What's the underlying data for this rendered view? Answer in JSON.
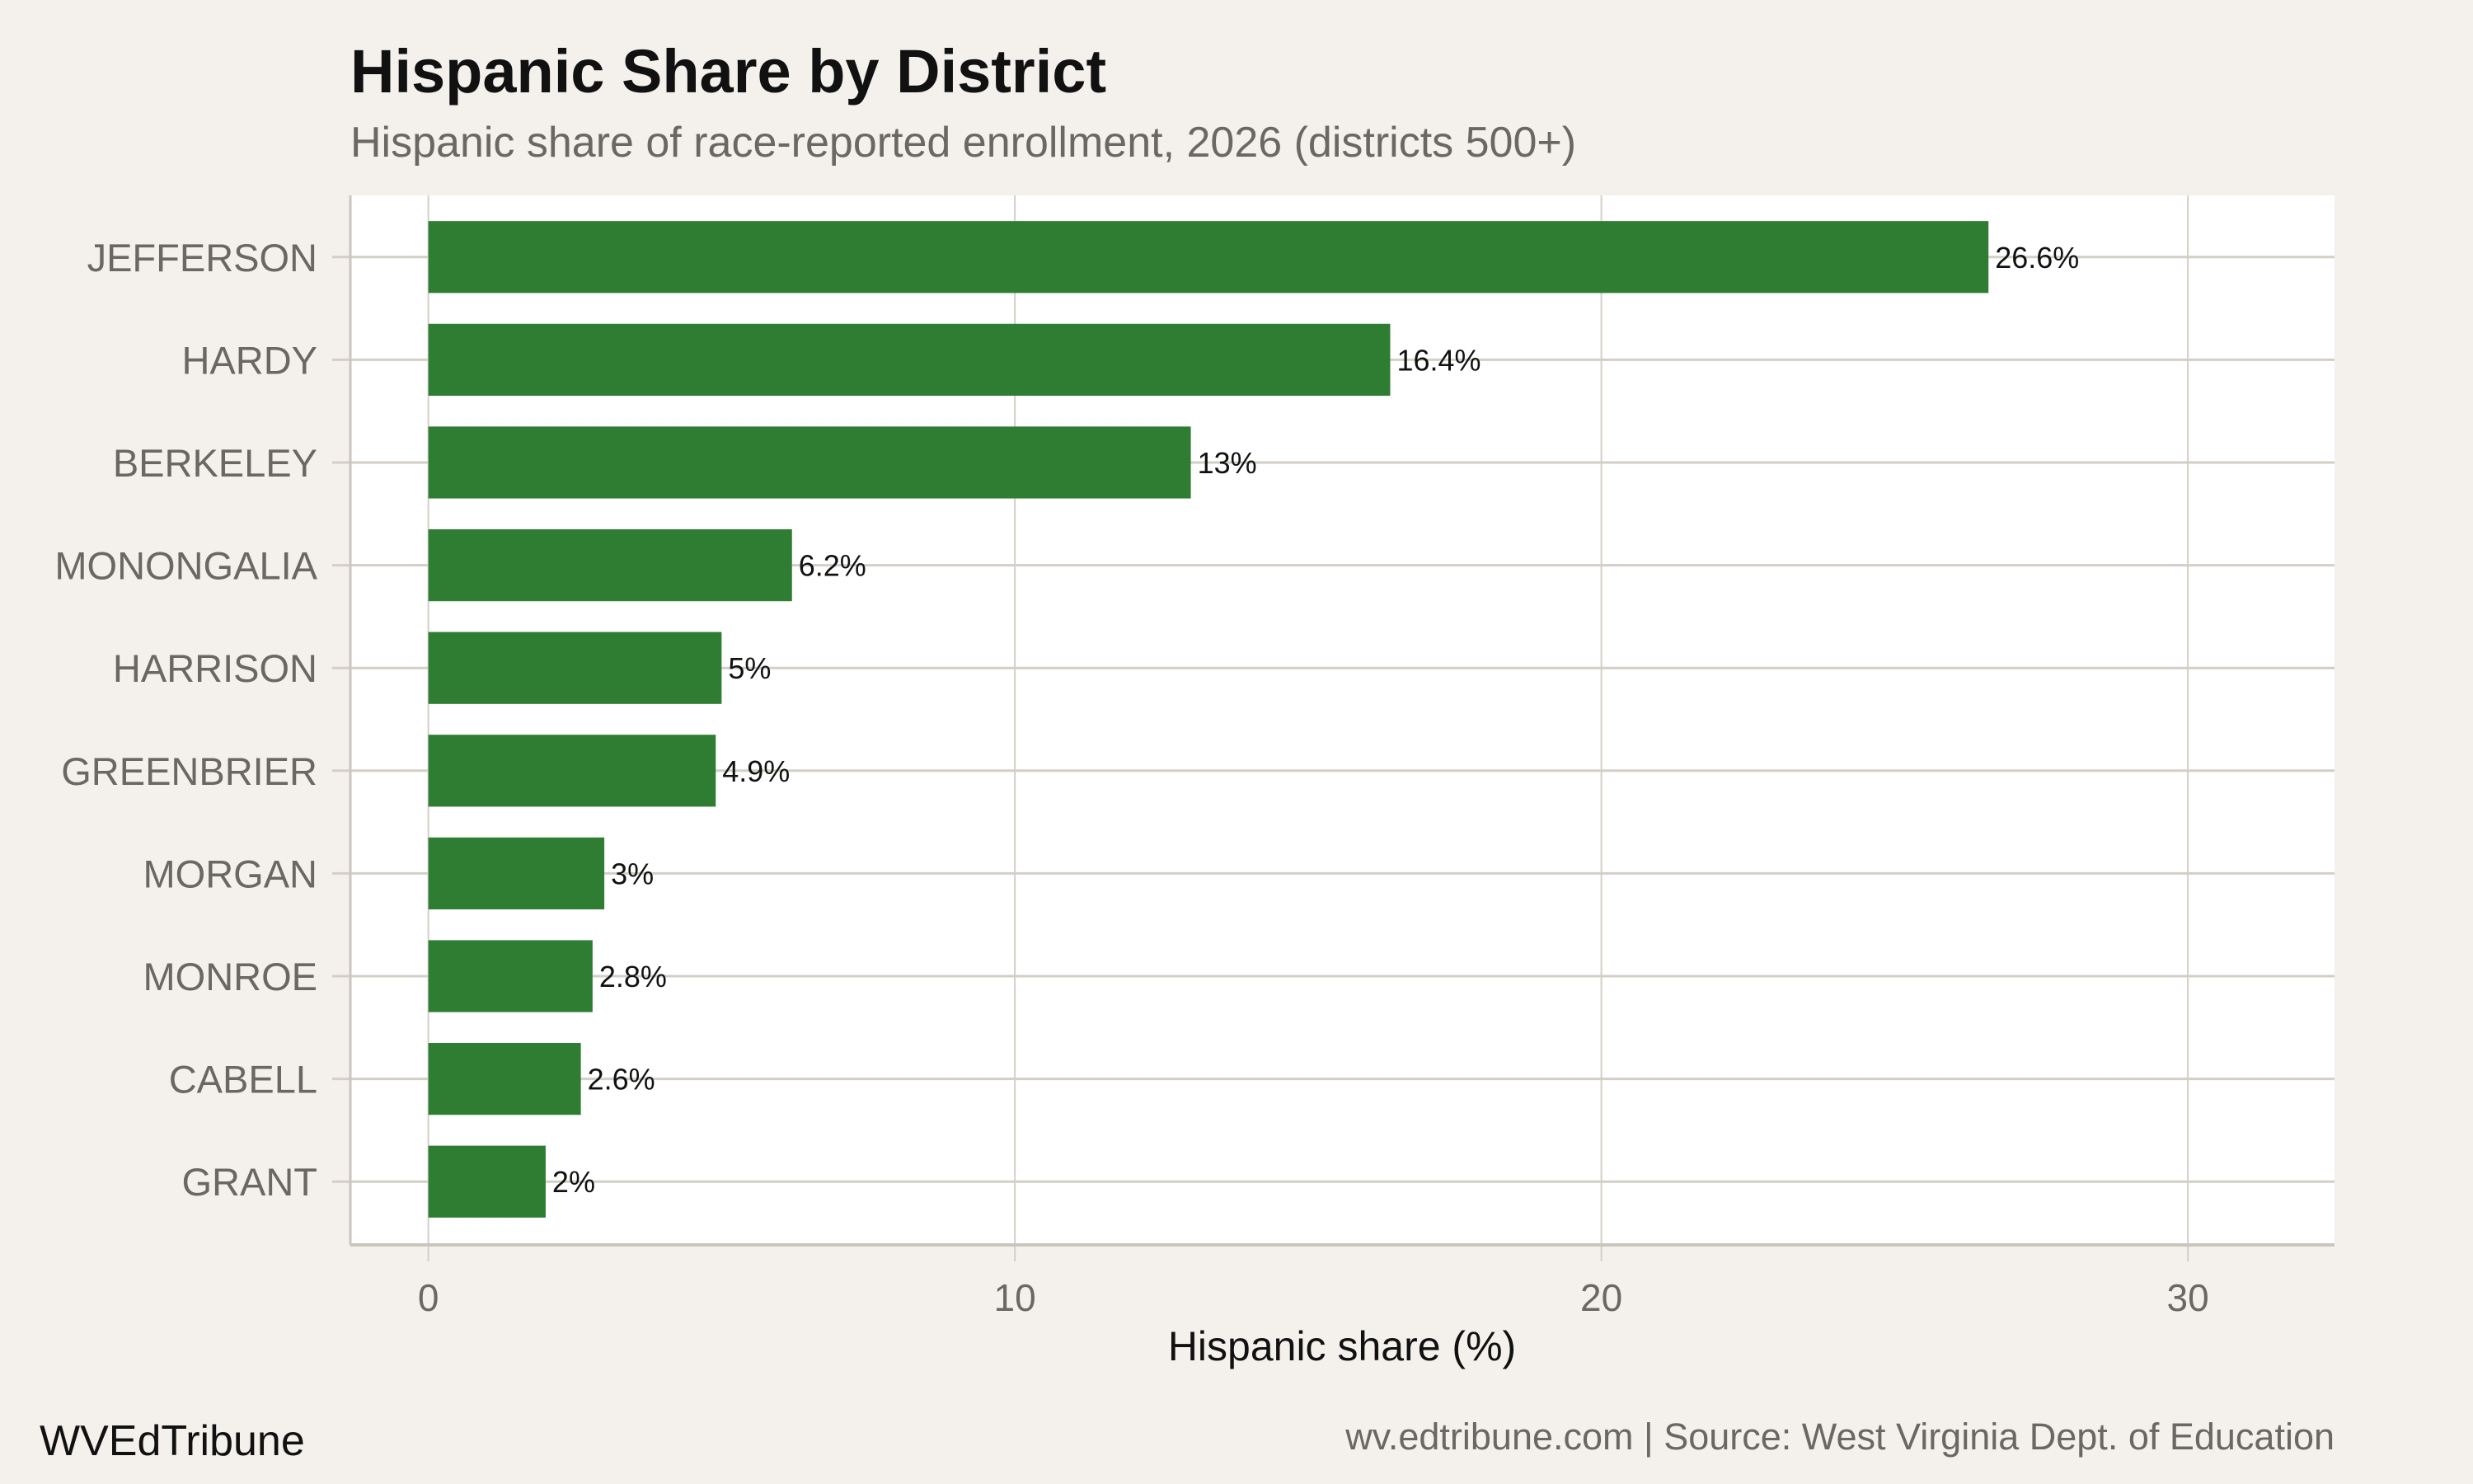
{
  "chart_data": {
    "type": "bar",
    "orientation": "horizontal",
    "title": "Hispanic Share by District",
    "subtitle": "Hispanic share of race-reported enrollment, 2026 (districts 500+)",
    "xlabel": "Hispanic share (%)",
    "ylabel": "",
    "categories": [
      "JEFFERSON",
      "HARDY",
      "BERKELEY",
      "MONONGALIA",
      "HARRISON",
      "GREENBRIER",
      "MORGAN",
      "MONROE",
      "CABELL",
      "GRANT"
    ],
    "values": [
      26.6,
      16.4,
      13,
      6.2,
      5,
      4.9,
      3,
      2.8,
      2.6,
      2
    ],
    "data_labels": [
      "26.6%",
      "16.4%",
      "13%",
      "6.2%",
      "5%",
      "4.9%",
      "3%",
      "2.8%",
      "2.6%",
      "2%"
    ],
    "xticks": [
      "0",
      "10",
      "20",
      "30"
    ],
    "xlim": [
      -1.33,
      32.5
    ],
    "grid": true,
    "bar_color": "#2e7d32",
    "background": "#f4f1ec"
  },
  "footer": {
    "brand": "WVEdTribune",
    "caption": "wv.edtribune.com | Source: West Virginia Dept. of Education"
  }
}
